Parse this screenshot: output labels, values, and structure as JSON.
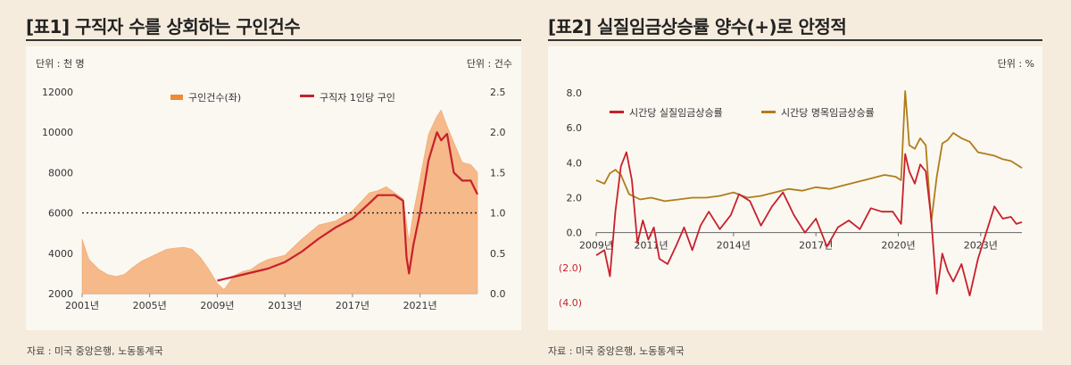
{
  "charts": [
    {
      "title": "[표1] 구직자 수를 상회하는 구인건수",
      "unit_left": "단위 : 천 명",
      "unit_right": "단위 : 건수",
      "source": "자료 : 미국 중앙은행, 노동통계국",
      "legend": [
        "구인건수(좌)",
        "구직자 1인당 구인"
      ],
      "y_left_ticks": [
        "12000",
        "10000",
        "8000",
        "6000",
        "4000",
        "2000"
      ],
      "y_right_ticks": [
        "2.5",
        "2.0",
        "1.5",
        "1.0",
        "0.5",
        "0.0"
      ],
      "x_ticks": [
        "2001년",
        "2005년",
        "2009년",
        "2013년",
        "2017년",
        "2021년"
      ]
    },
    {
      "title": "[표2] 실질임금상승률 양수(+)로 안정적",
      "unit": "단위 : %",
      "source": "자료 : 미국 중앙은행, 노동통계국",
      "legend": [
        "시간당 실질임금상승률",
        "시간당 명목임금상승률"
      ],
      "y_ticks": [
        "8.0",
        "6.0",
        "4.0",
        "2.0",
        "0.0",
        "(2.0)",
        "(4.0)"
      ],
      "x_ticks": [
        "2009년",
        "2011년",
        "2014년",
        "2017년",
        "2020년",
        "2023년"
      ]
    }
  ],
  "colors": {
    "area": "#f5b98a",
    "area_legend": "#ef8a32",
    "red": "#c8202b",
    "gold": "#b07d1a",
    "dotted": "#222222"
  },
  "chart_data": [
    {
      "type": "area",
      "x_range": [
        2001.0,
        2024.4
      ],
      "ylim_left": [
        2000,
        12000
      ],
      "ylim_right": [
        0.0,
        2.5
      ],
      "reference_line_right": 1.0,
      "series": [
        {
          "name": "구인건수(좌)",
          "axis": "left",
          "x": [
            2001.0,
            2001.4,
            2002.0,
            2002.5,
            2003.0,
            2003.5,
            2004.0,
            2004.5,
            2005.0,
            2005.5,
            2006.0,
            2006.5,
            2007.0,
            2007.5,
            2008.0,
            2008.5,
            2009.0,
            2009.4,
            2010.0,
            2010.5,
            2011.0,
            2011.5,
            2012.0,
            2013.0,
            2014.0,
            2015.0,
            2016.0,
            2017.0,
            2018.0,
            2018.5,
            2019.0,
            2019.5,
            2020.0,
            2020.2,
            2020.35,
            2020.6,
            2021.0,
            2021.5,
            2022.0,
            2022.25,
            2022.6,
            2023.0,
            2023.5,
            2024.0,
            2024.4
          ],
          "values": [
            4700,
            3700,
            3200,
            2950,
            2850,
            2950,
            3300,
            3600,
            3800,
            4000,
            4200,
            4250,
            4300,
            4200,
            3800,
            3200,
            2500,
            2200,
            2900,
            3100,
            3200,
            3500,
            3700,
            3900,
            4700,
            5400,
            5600,
            6100,
            7000,
            7100,
            7300,
            7000,
            6700,
            5500,
            4600,
            6000,
            7700,
            9900,
            10800,
            11100,
            10300,
            9500,
            8500,
            8400,
            8000
          ]
        },
        {
          "name": "구직자 1인당 구인",
          "axis": "right",
          "x": [
            2009.0,
            2010.0,
            2011.0,
            2012.0,
            2013.0,
            2014.0,
            2015.0,
            2016.0,
            2017.0,
            2018.0,
            2018.5,
            2019.0,
            2019.5,
            2020.0,
            2020.2,
            2020.35,
            2020.6,
            2021.0,
            2021.5,
            2022.0,
            2022.25,
            2022.6,
            2023.0,
            2023.5,
            2024.0,
            2024.4
          ],
          "values": [
            0.16,
            0.21,
            0.26,
            0.31,
            0.39,
            0.52,
            0.68,
            0.82,
            0.93,
            1.12,
            1.22,
            1.22,
            1.22,
            1.15,
            0.45,
            0.25,
            0.6,
            1.0,
            1.65,
            2.0,
            1.9,
            1.98,
            1.5,
            1.4,
            1.4,
            1.23
          ]
        }
      ]
    },
    {
      "type": "line",
      "x_range": [
        2009.0,
        2024.5
      ],
      "ylim": [
        -4.0,
        8.0
      ],
      "series": [
        {
          "name": "시간당 실질임금상승률",
          "x": [
            2009.0,
            2009.3,
            2009.5,
            2009.7,
            2009.9,
            2010.1,
            2010.3,
            2010.5,
            2010.7,
            2010.9,
            2011.1,
            2011.3,
            2011.6,
            2011.9,
            2012.2,
            2012.5,
            2012.8,
            2013.1,
            2013.5,
            2013.9,
            2014.2,
            2014.6,
            2015.0,
            2015.4,
            2015.8,
            2016.2,
            2016.6,
            2017.0,
            2017.4,
            2017.8,
            2018.2,
            2018.6,
            2019.0,
            2019.4,
            2019.8,
            2020.1,
            2020.25,
            2020.4,
            2020.6,
            2020.8,
            2021.0,
            2021.2,
            2021.4,
            2021.6,
            2021.8,
            2022.0,
            2022.3,
            2022.6,
            2022.9,
            2023.2,
            2023.5,
            2023.8,
            2024.1,
            2024.3,
            2024.5
          ],
          "values": [
            -1.3,
            -1.0,
            -2.5,
            1.2,
            3.8,
            4.6,
            3.0,
            -0.6,
            0.7,
            -0.4,
            0.3,
            -1.5,
            -1.8,
            -0.8,
            0.3,
            -1.0,
            0.4,
            1.2,
            0.2,
            1.0,
            2.2,
            1.8,
            0.4,
            1.5,
            2.3,
            1.0,
            0.0,
            0.8,
            -0.8,
            0.3,
            0.7,
            0.2,
            1.4,
            1.2,
            1.2,
            0.5,
            4.5,
            3.5,
            2.8,
            3.9,
            3.5,
            0.8,
            -3.5,
            -1.2,
            -2.2,
            -2.8,
            -1.8,
            -3.6,
            -1.5,
            0.0,
            1.5,
            0.8,
            0.9,
            0.5,
            0.6
          ]
        },
        {
          "name": "시간당 명목임금상승률",
          "x": [
            2009.0,
            2009.3,
            2009.5,
            2009.7,
            2009.9,
            2010.2,
            2010.6,
            2011.0,
            2011.5,
            2012.0,
            2012.5,
            2013.0,
            2013.5,
            2014.0,
            2014.5,
            2015.0,
            2015.5,
            2016.0,
            2016.5,
            2017.0,
            2017.5,
            2018.0,
            2018.5,
            2019.0,
            2019.5,
            2019.9,
            2020.1,
            2020.25,
            2020.4,
            2020.6,
            2020.8,
            2021.0,
            2021.2,
            2021.4,
            2021.6,
            2021.8,
            2022.0,
            2022.3,
            2022.6,
            2022.9,
            2023.2,
            2023.5,
            2023.8,
            2024.1,
            2024.5
          ],
          "values": [
            3.0,
            2.8,
            3.4,
            3.6,
            3.3,
            2.2,
            1.9,
            2.0,
            1.8,
            1.9,
            2.0,
            2.0,
            2.1,
            2.3,
            2.0,
            2.1,
            2.3,
            2.5,
            2.4,
            2.6,
            2.5,
            2.7,
            2.9,
            3.1,
            3.3,
            3.2,
            3.0,
            8.1,
            5.0,
            4.8,
            5.4,
            5.0,
            0.6,
            3.2,
            5.1,
            5.3,
            5.7,
            5.4,
            5.2,
            4.6,
            4.5,
            4.4,
            4.2,
            4.1,
            3.7
          ]
        }
      ]
    }
  ]
}
